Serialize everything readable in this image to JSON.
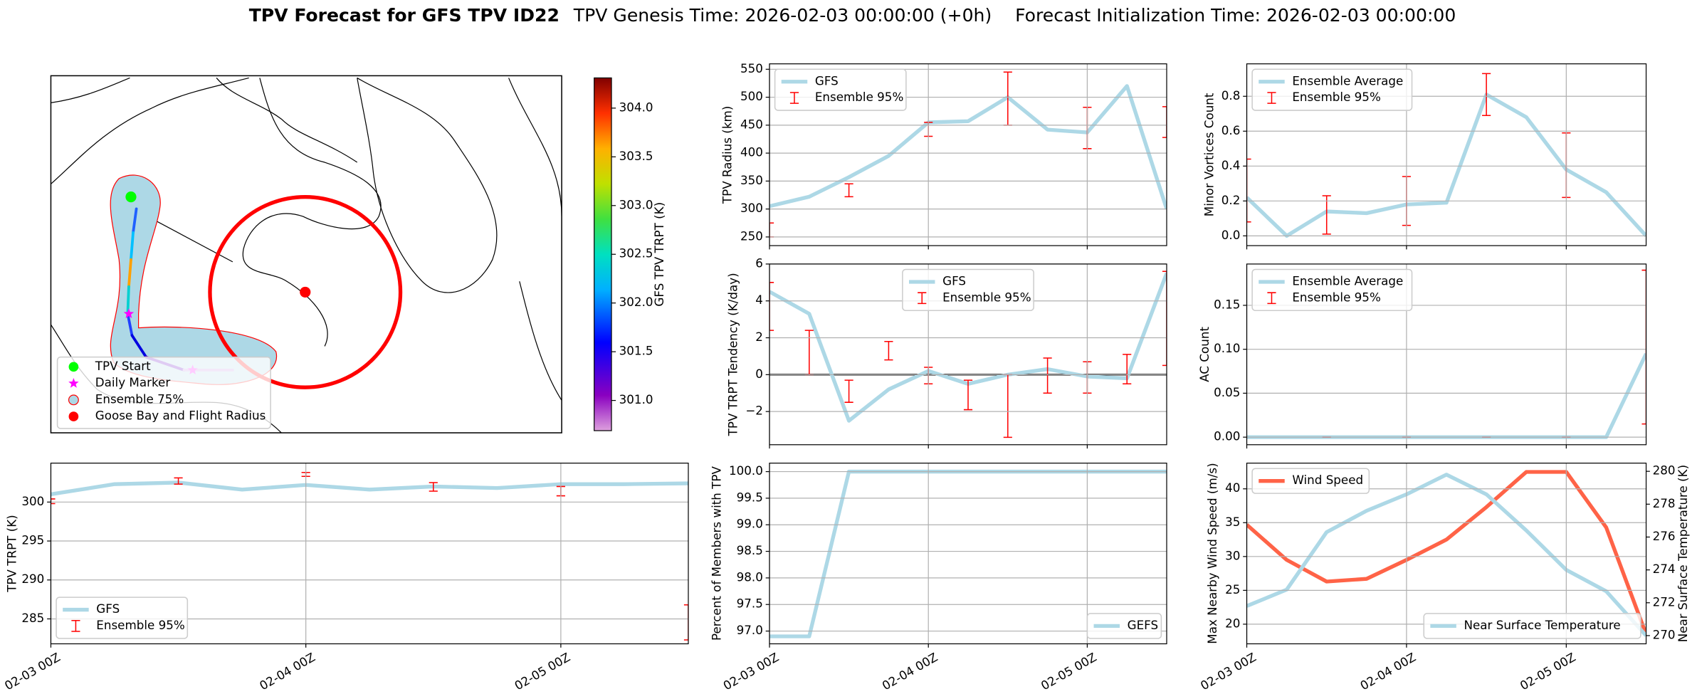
{
  "suptitle": [
    "TPV Forecast for GFS TPV ID22",
    "TPV Genesis Time: 2026-02-03 00:00:00 (+0h)",
    "Forecast Initialization Time: 2026-02-03 00:00:00"
  ],
  "chart_data": [
    {
      "type": "map",
      "colorbar_label": "GFS TPV TRPT (K)",
      "clim": [
        300.69,
        304.31
      ],
      "cticks": [
        {
          "value": 301,
          "label": "301.0"
        },
        {
          "value": 301.5,
          "label": "301.5"
        },
        {
          "value": 302,
          "label": "302.0"
        },
        {
          "value": 302.5,
          "label": "302.5"
        },
        {
          "value": 303,
          "label": "303.0"
        },
        {
          "value": 303.5,
          "label": "303.5"
        },
        {
          "value": 304,
          "label": "304.0"
        }
      ],
      "legend": [
        {
          "label": "TPV Start",
          "color": "#00ff00"
        },
        {
          "label": "Daily Marker",
          "color": "#ff00ff"
        },
        {
          "label": "Ensemble 75%",
          "color": "#add8e6"
        },
        {
          "label": "Goose Bay and Flight Radius",
          "color": "#ff0000"
        }
      ]
    },
    {
      "type": "line",
      "ylabel": "TPV Radius (km)",
      "x": [
        0,
        6,
        12,
        18,
        24,
        30,
        36,
        42,
        48,
        54,
        60
      ],
      "xlim": [
        0,
        60
      ],
      "xticks": [
        0,
        24,
        48
      ],
      "ylim": [
        234.5,
        559.7
      ],
      "yticks": [
        250,
        300,
        350,
        400,
        450,
        500,
        550
      ],
      "grid": true,
      "legend": "upper left",
      "series": [
        {
          "name": "GFS",
          "color": "#add8e6",
          "values": [
            305,
            322,
            357,
            395,
            455,
            457,
            500,
            442,
            437,
            520,
            300
          ]
        }
      ],
      "errorbars": {
        "name": "Ensemble 95%",
        "color": "#ff0000",
        "x": [
          0,
          12,
          24,
          36,
          48,
          60
        ],
        "low": [
          250,
          322,
          430,
          450,
          408,
          428
        ],
        "high": [
          275,
          345,
          455,
          545,
          482,
          483
        ]
      }
    },
    {
      "type": "line",
      "ylabel": "Minor Vortices Count",
      "x": [
        0,
        6,
        12,
        18,
        24,
        30,
        36,
        42,
        48,
        54,
        60
      ],
      "xlim": [
        0,
        60
      ],
      "xticks": [
        0,
        24,
        48
      ],
      "ylim": [
        -0.056,
        0.986
      ],
      "yticks": [
        {
          "value": 0,
          "label": "0.0"
        },
        {
          "value": 0.2,
          "label": "0.2"
        },
        {
          "value": 0.4,
          "label": "0.4"
        },
        {
          "value": 0.6,
          "label": "0.6"
        },
        {
          "value": 0.8,
          "label": "0.8"
        }
      ],
      "grid": true,
      "legend": "upper left",
      "series": [
        {
          "name": "Ensemble Average",
          "color": "#add8e6",
          "values": [
            0.22,
            0.0,
            0.14,
            0.13,
            0.18,
            0.19,
            0.81,
            0.68,
            0.38,
            0.25,
            0.0
          ]
        }
      ],
      "errorbars": {
        "name": "Ensemble 95%",
        "color": "#ff0000",
        "x": [
          0,
          12,
          24,
          36,
          48
        ],
        "low": [
          0.08,
          0.01,
          0.06,
          0.69,
          0.22
        ],
        "high": [
          0.44,
          0.23,
          0.34,
          0.93,
          0.59
        ]
      }
    },
    {
      "type": "line",
      "ylabel": "TPV TRPT Tendency (K/day)",
      "x": [
        0,
        6,
        12,
        18,
        24,
        30,
        36,
        42,
        48,
        54,
        60
      ],
      "xlim": [
        0,
        60
      ],
      "xticks": [
        0,
        24,
        48
      ],
      "ylim": [
        -3.8,
        6.0
      ],
      "yticks": [
        {
          "value": -2,
          "label": "−2"
        },
        0,
        2,
        4,
        6
      ],
      "grid": true,
      "legend": "upper center",
      "zero_line": true,
      "series": [
        {
          "name": "GFS",
          "color": "#add8e6",
          "values": [
            4.5,
            3.3,
            -2.5,
            -0.8,
            0.2,
            -0.5,
            0.0,
            0.3,
            -0.1,
            -0.2,
            5.5
          ]
        }
      ],
      "errorbars": {
        "name": "Ensemble 95%",
        "color": "#ff0000",
        "x": [
          0,
          6,
          12,
          18,
          24,
          30,
          36,
          42,
          48,
          54,
          60
        ],
        "low": [
          2.4,
          0.0,
          -1.5,
          0.8,
          -0.5,
          -1.9,
          -3.4,
          -1.0,
          -1.0,
          -0.5,
          0.5
        ],
        "high": [
          5.0,
          2.4,
          -0.3,
          1.8,
          0.4,
          -0.3,
          0.0,
          0.9,
          0.7,
          1.1,
          5.6
        ]
      }
    },
    {
      "type": "line",
      "ylabel": "AC Count",
      "x": [
        0,
        6,
        12,
        18,
        24,
        30,
        36,
        42,
        48,
        54,
        60
      ],
      "xlim": [
        0,
        60
      ],
      "xticks": [
        0,
        24,
        48
      ],
      "ylim": [
        -0.0086,
        0.197
      ],
      "yticks": [
        {
          "value": 0,
          "label": "0.00"
        },
        {
          "value": 0.05,
          "label": "0.05"
        },
        {
          "value": 0.1,
          "label": "0.10"
        },
        {
          "value": 0.15,
          "label": "0.15"
        }
      ],
      "grid": true,
      "legend": "upper left",
      "series": [
        {
          "name": "Ensemble Average",
          "color": "#add8e6",
          "values": [
            0,
            0,
            0,
            0,
            0,
            0,
            0,
            0,
            0,
            0,
            0.095
          ]
        }
      ],
      "errorbars": {
        "name": "Ensemble 95%",
        "color": "#ff0000",
        "x": [
          12,
          24,
          36,
          48,
          60
        ],
        "low": [
          0,
          0,
          0,
          0,
          0.015
        ],
        "high": [
          0,
          0,
          0,
          0,
          0.19
        ]
      }
    },
    {
      "type": "line",
      "ylabel": "TPV TRPT (K)",
      "x": [
        0,
        6,
        12,
        18,
        24,
        30,
        36,
        42,
        48,
        54,
        60
      ],
      "xlim": [
        0,
        60
      ],
      "xticks": [
        {
          "value": 0,
          "label": "02-03 00Z"
        },
        {
          "value": 24,
          "label": "02-04 00Z"
        },
        {
          "value": 48,
          "label": "02-05 00Z"
        }
      ],
      "ylim": [
        281.8,
        305.0
      ],
      "yticks": [
        285,
        290,
        295,
        300
      ],
      "grid": true,
      "legend": "lower left",
      "series": [
        {
          "name": "GFS",
          "color": "#add8e6",
          "values": [
            301.0,
            302.3,
            302.5,
            301.6,
            302.2,
            301.6,
            302.0,
            301.8,
            302.3,
            302.3,
            302.4
          ]
        }
      ],
      "errorbars": {
        "name": "Ensemble 95%",
        "color": "#ff0000",
        "x": [
          0,
          12,
          24,
          36,
          48,
          60
        ],
        "low": [
          299.8,
          302.3,
          303.3,
          301.4,
          300.8,
          282.3
        ],
        "high": [
          300.4,
          303.1,
          303.8,
          302.5,
          302.0,
          286.8
        ]
      }
    },
    {
      "type": "line",
      "ylabel": "Percent of Members with TPV",
      "x": [
        0,
        6,
        12,
        18,
        24,
        30,
        36,
        42,
        48,
        54,
        60
      ],
      "xlim": [
        0,
        60
      ],
      "xticks": [
        {
          "value": 0,
          "label": "02-03 00Z"
        },
        {
          "value": 24,
          "label": "02-04 00Z"
        },
        {
          "value": 48,
          "label": "02-05 00Z"
        }
      ],
      "ylim": [
        96.76,
        100.16
      ],
      "yticks": [
        {
          "value": 97,
          "label": "97.0"
        },
        {
          "value": 97.5,
          "label": "97.5"
        },
        {
          "value": 98,
          "label": "98.0"
        },
        {
          "value": 98.5,
          "label": "98.5"
        },
        {
          "value": 99,
          "label": "99.0"
        },
        {
          "value": 99.5,
          "label": "99.5"
        },
        {
          "value": 100,
          "label": "100.0"
        }
      ],
      "grid": true,
      "legend": "lower right",
      "series": [
        {
          "name": "GEFS",
          "color": "#add8e6",
          "values": [
            96.9,
            96.9,
            100,
            100,
            100,
            100,
            100,
            100,
            100,
            100,
            100
          ]
        }
      ]
    },
    {
      "type": "line",
      "ylabel": "Max Nearby Wind Speed (m/s)",
      "ylabel_color": "#ff6347",
      "y2label": "Near Surface Temperature (K)",
      "y2label_color": "#4169e1",
      "x": [
        0,
        6,
        12,
        18,
        24,
        30,
        36,
        42,
        48,
        54,
        60
      ],
      "xlim": [
        0,
        60
      ],
      "xticks": [
        {
          "value": 0,
          "label": "02-03 00Z"
        },
        {
          "value": 24,
          "label": "02-04 00Z"
        },
        {
          "value": 48,
          "label": "02-05 00Z"
        }
      ],
      "ylim": [
        17.1,
        43.8
      ],
      "yticks": [
        20,
        25,
        30,
        35,
        40
      ],
      "y2lim": [
        269.5,
        280.5
      ],
      "y2ticks": [
        270,
        272,
        274,
        276,
        278,
        280
      ],
      "grid": true,
      "legend": "upper left",
      "series": [
        {
          "name": "Wind Speed",
          "color": "#ff6347",
          "values": [
            34.7,
            29.5,
            26.3,
            26.7,
            29.5,
            32.5,
            37.3,
            42.5,
            42.5,
            34.3,
            18.5
          ]
        },
        {
          "name": "Near Surface Temperature",
          "color": "#add8e6",
          "axis": "y2",
          "legend": "lower right",
          "values": [
            271.8,
            272.8,
            276.3,
            277.6,
            278.6,
            279.8,
            278.6,
            276.4,
            274.0,
            272.7,
            270.0
          ]
        }
      ]
    }
  ]
}
